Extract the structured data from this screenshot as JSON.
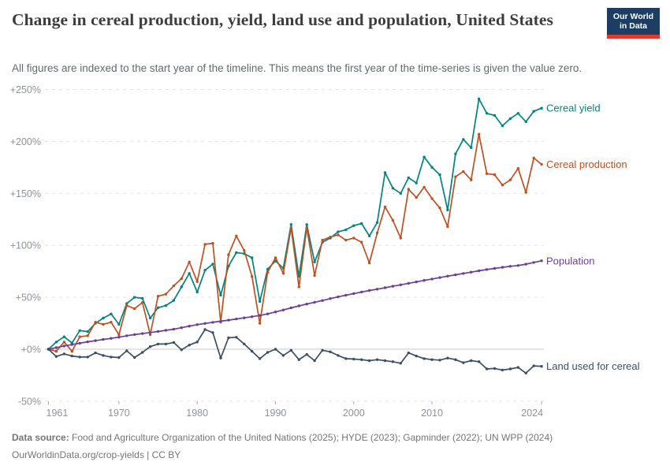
{
  "header": {
    "title": "Change in cereal production, yield, land use and population, United States",
    "subtitle": "All figures are indexed to the start year of the timeline. This means the first year of the time-series is given the value zero.",
    "logo": {
      "line1": "Our World",
      "line2": "in Data",
      "bg": "#1d3d63",
      "accent": "#e0392e"
    }
  },
  "footer": {
    "source_label": "Data source:",
    "source_text": "Food and Agriculture Organization of the United Nations (2025); HYDE (2023); Gapminder (2022); UN WPP (2024)",
    "license_text": "OurWorldinData.org/crop-yields | CC BY"
  },
  "chart_data": {
    "type": "line",
    "title": "Change in cereal production, yield, land use and population, United States",
    "grid": "dashed horizontal",
    "legend_position": "end-of-line labels, right",
    "ylim": [
      -50,
      250
    ],
    "xlim": [
      1961,
      2024
    ],
    "y_ticks": [
      {
        "v": 250,
        "label": "+250%"
      },
      {
        "v": 200,
        "label": "+200%"
      },
      {
        "v": 150,
        "label": "+150%"
      },
      {
        "v": 100,
        "label": "+100%"
      },
      {
        "v": 50,
        "label": "+50%"
      },
      {
        "v": 0,
        "label": "+0%"
      },
      {
        "v": -50,
        "label": "-50%"
      }
    ],
    "x_ticks": [
      1961,
      1970,
      1980,
      1990,
      2000,
      2010,
      2024
    ],
    "x": [
      1961,
      1962,
      1963,
      1964,
      1965,
      1966,
      1967,
      1968,
      1969,
      1970,
      1971,
      1972,
      1973,
      1974,
      1975,
      1976,
      1977,
      1978,
      1979,
      1980,
      1981,
      1982,
      1983,
      1984,
      1985,
      1986,
      1987,
      1988,
      1989,
      1990,
      1991,
      1992,
      1993,
      1994,
      1995,
      1996,
      1997,
      1998,
      1999,
      2000,
      2001,
      2002,
      2003,
      2004,
      2005,
      2006,
      2007,
      2008,
      2009,
      2010,
      2011,
      2012,
      2013,
      2014,
      2015,
      2016,
      2017,
      2018,
      2019,
      2020,
      2021,
      2022,
      2023,
      2024
    ],
    "series": [
      {
        "name": "Cereal yield",
        "color": "#00847e",
        "unit": "%",
        "values": [
          0,
          7,
          12,
          6,
          18,
          17,
          25,
          30,
          34,
          24,
          44,
          50,
          49,
          30,
          40,
          42,
          47,
          60,
          73,
          55,
          76,
          82,
          52,
          80,
          93,
          92,
          88,
          46,
          77,
          85,
          78,
          120,
          70,
          120,
          84,
          103,
          107,
          113,
          115,
          119,
          121,
          109,
          122,
          170,
          155,
          150,
          165,
          160,
          185,
          175,
          168,
          134,
          188,
          202,
          194,
          241,
          227,
          225,
          215,
          222,
          227,
          219,
          229,
          232
        ]
      },
      {
        "name": "Cereal production",
        "color": "#be5123",
        "unit": "%",
        "values": [
          0,
          -2,
          7,
          -2,
          12,
          13,
          26,
          24,
          26,
          14,
          42,
          39,
          45,
          14,
          51,
          53,
          61,
          68,
          84,
          65,
          101,
          102,
          26,
          91,
          109,
          95,
          70,
          25,
          74,
          88,
          73,
          117,
          60,
          117,
          71,
          105,
          108,
          110,
          105,
          107,
          103,
          83,
          112,
          137,
          124,
          107,
          154,
          146,
          156,
          145,
          136,
          118,
          166,
          171,
          163,
          207,
          169,
          168,
          158,
          163,
          174,
          151,
          184,
          178
        ]
      },
      {
        "name": "Population",
        "color": "#6d3e91",
        "unit": "%",
        "values": [
          0,
          1.6,
          3.1,
          4.5,
          5.8,
          7.1,
          8.3,
          9.4,
          10.5,
          11.6,
          13,
          14.1,
          15.1,
          16.1,
          17.1,
          18.2,
          19.3,
          20.7,
          22.2,
          23.7,
          24.8,
          25.9,
          27,
          28,
          29.1,
          30.2,
          31.3,
          32.5,
          34,
          35.9,
          37.8,
          39.8,
          41.7,
          43.5,
          45.2,
          46.9,
          48.7,
          50.4,
          52,
          53.6,
          55.1,
          56.5,
          57.8,
          59.2,
          60.6,
          62,
          63.4,
          64.8,
          66.2,
          67.6,
          69,
          70.3,
          71.6,
          72.9,
          74.2,
          75.5,
          76.7,
          77.8,
          78.8,
          79.8,
          80.6,
          81.9,
          83.5,
          85.1
        ]
      },
      {
        "name": "Land used for cereal",
        "color": "#3c4e66",
        "unit": "%",
        "values": [
          0,
          -7,
          -4.5,
          -6.5,
          -7.5,
          -7.5,
          -3.5,
          -6,
          -7.5,
          -8,
          -1.5,
          -8,
          -3,
          2.5,
          5,
          5,
          6.5,
          -0.5,
          4,
          7,
          19,
          16,
          -8.5,
          11,
          11.5,
          5,
          -2,
          -9,
          -3,
          0,
          -6,
          -1,
          -10,
          -5,
          -11,
          -1,
          -2.5,
          -6,
          -9,
          -9.5,
          -10,
          -11,
          -10,
          -11,
          -12,
          -13.5,
          -3.5,
          -6.5,
          -9,
          -10,
          -10.5,
          -8.5,
          -10,
          -13,
          -11,
          -12,
          -19,
          -18.5,
          -20,
          -19,
          -17.5,
          -23,
          -16,
          -16.5
        ]
      }
    ]
  }
}
